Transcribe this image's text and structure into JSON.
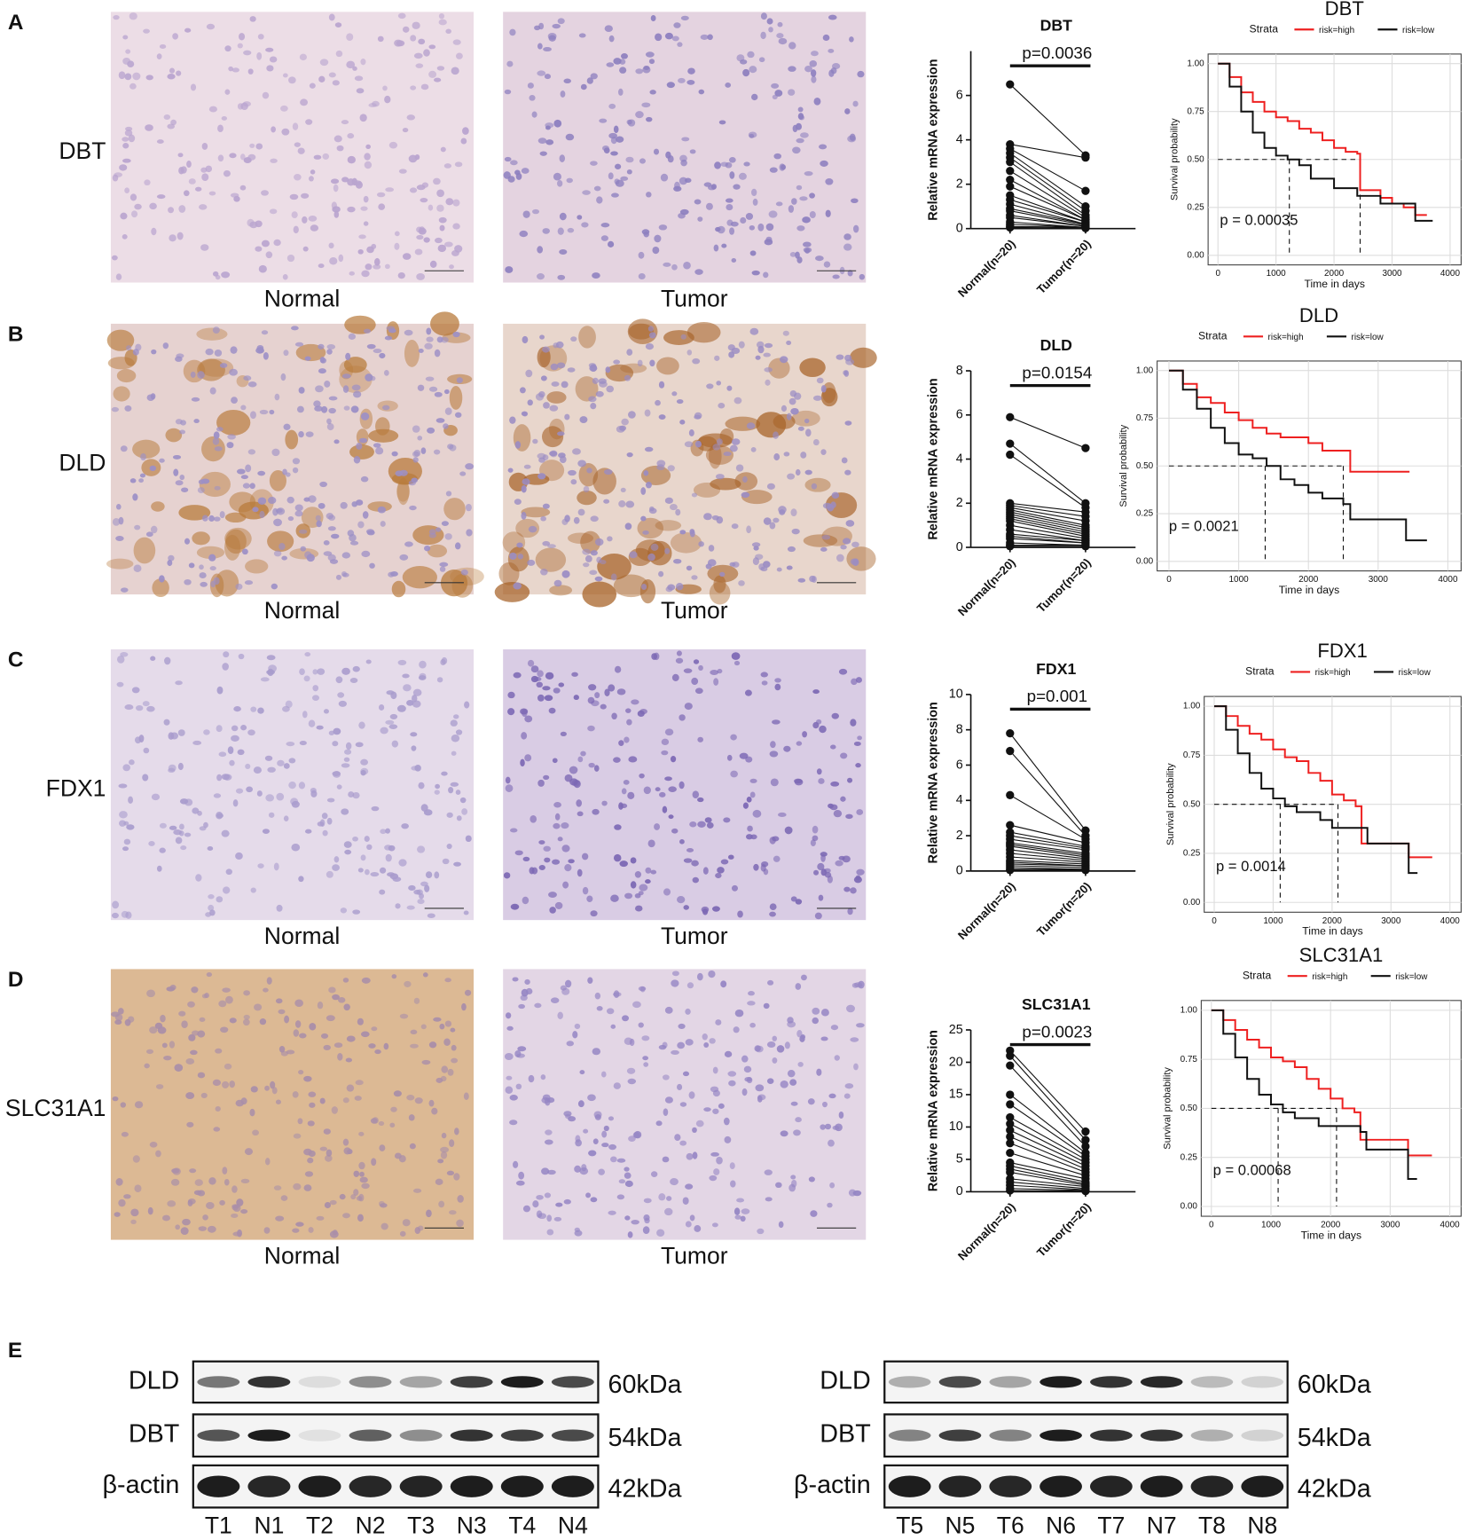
{
  "panels": [
    {
      "label": "A",
      "gene": "DBT",
      "images": [
        "Normal",
        "Tumor"
      ],
      "mrna": {
        "type": "paired",
        "title": "DBT",
        "ylabel": "Relative mRNA  expression",
        "categories": [
          "Normal(n=20)",
          "Tumor(n=20)"
        ],
        "p_text": "p=0.0036",
        "ylim": [
          0,
          8
        ],
        "yticks": [
          0,
          2,
          4,
          6
        ],
        "values": [
          [
            6.5,
            3.8,
            3.6,
            3.4,
            3.2,
            3.0,
            2.6,
            2.2,
            1.9,
            1.5,
            1.3,
            1.1,
            0.9,
            0.8,
            0.6,
            0.5,
            0.3,
            0.2,
            0.1,
            0.05
          ],
          [
            3.3,
            3.2,
            1.7,
            1.0,
            0.8,
            0.6,
            0.5,
            0.4,
            0.4,
            0.3,
            0.3,
            0.2,
            0.2,
            0.15,
            0.1,
            0.1,
            0.05,
            0.05,
            0.05,
            0.02
          ]
        ]
      },
      "survival": {
        "type": "line",
        "title": "DBT",
        "legend_title": "Strata",
        "xlabel": "Time in days",
        "ylabel": "Survival probability",
        "p_text": "p = 0.00035",
        "xlim": [
          -170,
          4190
        ],
        "ylim": [
          -0.05,
          1.05
        ],
        "xticks": [
          0,
          1000,
          2000,
          3000,
          4000
        ],
        "yticks": [
          {
            "value": 0,
            "label": "0.00"
          },
          {
            "value": 0.25,
            "label": "0.25"
          },
          {
            "value": 0.5,
            "label": "0.50"
          },
          {
            "value": 0.75,
            "label": "0.75"
          },
          {
            "value": 1,
            "label": "1.00"
          }
        ],
        "grid": true,
        "median_lines": {
          "y": 0.5,
          "x": [
            2450,
            1230
          ]
        },
        "series": [
          {
            "name": "risk=high",
            "color": "#ee2020",
            "x": [
              0,
              200,
              400,
              600,
              800,
              1000,
              1200,
              1400,
              1600,
              1800,
              2000,
              2200,
              2400,
              2450,
              2800,
              3000,
              3200,
              3400,
              3600
            ],
            "values": [
              1,
              0.93,
              0.85,
              0.8,
              0.75,
              0.72,
              0.7,
              0.66,
              0.64,
              0.6,
              0.56,
              0.54,
              0.53,
              0.34,
              0.3,
              0.27,
              0.25,
              0.21,
              0.21
            ]
          },
          {
            "name": "risk=low",
            "color": "#111111",
            "x": [
              0,
              200,
              400,
              600,
              800,
              1000,
              1200,
              1400,
              1600,
              2000,
              2400,
              2800,
              3200,
              3400,
              3700
            ],
            "values": [
              1,
              0.88,
              0.75,
              0.64,
              0.56,
              0.52,
              0.5,
              0.47,
              0.4,
              0.35,
              0.31,
              0.27,
              0.27,
              0.18,
              0.18
            ]
          }
        ]
      }
    },
    {
      "label": "B",
      "gene": "DLD",
      "images": [
        "Normal",
        "Tumor"
      ],
      "mrna": {
        "type": "paired",
        "title": "DLD",
        "ylabel": "Relative mRNA  expression",
        "categories": [
          "Normal(n=20)",
          "Tumor(n=20)"
        ],
        "p_text": "p=0.0154",
        "ylim": [
          0,
          8
        ],
        "yticks": [
          0,
          2,
          4,
          6,
          8
        ],
        "values": [
          [
            5.9,
            4.7,
            4.2,
            2.0,
            1.9,
            1.8,
            1.7,
            1.6,
            1.5,
            1.4,
            1.3,
            1.2,
            1.0,
            0.8,
            0.6,
            0.5,
            0.4,
            0.2,
            0.1,
            0.05
          ],
          [
            4.5,
            2.0,
            1.8,
            1.6,
            1.4,
            1.2,
            1.0,
            0.9,
            0.8,
            0.7,
            0.6,
            0.5,
            0.4,
            0.3,
            0.3,
            0.2,
            0.2,
            0.1,
            0.1,
            0.05
          ]
        ]
      },
      "survival": {
        "type": "line",
        "title": "DLD",
        "legend_title": "Strata",
        "xlabel": "Time in days",
        "ylabel": "Survival probability",
        "p_text": "p = 0.0021",
        "xlim": [
          -170,
          4190
        ],
        "ylim": [
          -0.05,
          1.05
        ],
        "xticks": [
          0,
          1000,
          2000,
          3000,
          4000
        ],
        "yticks": [
          {
            "value": 0,
            "label": "0.00"
          },
          {
            "value": 0.25,
            "label": "0.25"
          },
          {
            "value": 0.5,
            "label": "0.50"
          },
          {
            "value": 0.75,
            "label": "0.75"
          },
          {
            "value": 1,
            "label": "1.00"
          }
        ],
        "grid": true,
        "median_lines": {
          "y": 0.5,
          "x": [
            2500,
            1380
          ]
        },
        "series": [
          {
            "name": "risk=high",
            "color": "#ee2020",
            "x": [
              0,
              200,
              400,
              600,
              800,
              1000,
              1200,
              1400,
              1600,
              1800,
              2000,
              2200,
              2500,
              2600,
              3000,
              3450
            ],
            "values": [
              1,
              0.93,
              0.86,
              0.83,
              0.78,
              0.74,
              0.7,
              0.67,
              0.65,
              0.65,
              0.62,
              0.58,
              0.58,
              0.47,
              0.47,
              0.47
            ]
          },
          {
            "name": "risk=low",
            "color": "#111111",
            "x": [
              0,
              200,
              400,
              600,
              800,
              1000,
              1200,
              1400,
              1600,
              1800,
              2000,
              2200,
              2500,
              2600,
              3000,
              3400,
              3700
            ],
            "values": [
              1,
              0.9,
              0.8,
              0.7,
              0.62,
              0.56,
              0.54,
              0.5,
              0.43,
              0.4,
              0.36,
              0.33,
              0.3,
              0.22,
              0.22,
              0.11,
              0.11
            ]
          }
        ]
      }
    },
    {
      "label": "C",
      "gene": "FDX1",
      "images": [
        "Normal",
        "Tumor"
      ],
      "mrna": {
        "type": "paired",
        "title": "FDX1",
        "ylabel": "Relative mRNA  expression",
        "categories": [
          "Normal(n=20)",
          "Tumor(n=20)"
        ],
        "p_text": "p=0.001",
        "ylim": [
          0,
          10
        ],
        "yticks": [
          0,
          2,
          4,
          6,
          8,
          10
        ],
        "values": [
          [
            7.8,
            6.8,
            4.3,
            2.6,
            2.2,
            2.0,
            1.8,
            1.6,
            1.5,
            1.4,
            1.2,
            1.0,
            0.8,
            0.6,
            0.5,
            0.4,
            0.3,
            0.2,
            0.1,
            0.05
          ],
          [
            2.3,
            2.0,
            1.8,
            1.6,
            1.4,
            1.3,
            1.2,
            1.0,
            0.9,
            0.8,
            0.7,
            0.6,
            0.5,
            0.4,
            0.3,
            0.3,
            0.2,
            0.1,
            0.1,
            0.05
          ]
        ]
      },
      "survival": {
        "type": "line",
        "title": "FDX1",
        "legend_title": "Strata",
        "xlabel": "Time in days",
        "ylabel": "Survival probability",
        "p_text": "p = 0.0014",
        "xlim": [
          -170,
          4190
        ],
        "ylim": [
          -0.05,
          1.05
        ],
        "xticks": [
          0,
          1000,
          2000,
          3000,
          4000
        ],
        "yticks": [
          {
            "value": 0,
            "label": "0.00"
          },
          {
            "value": 0.25,
            "label": "0.25"
          },
          {
            "value": 0.5,
            "label": "0.50"
          },
          {
            "value": 0.75,
            "label": "0.75"
          },
          {
            "value": 1,
            "label": "1.00"
          }
        ],
        "grid": true,
        "median_lines": {
          "y": 0.5,
          "x": [
            2100,
            1120
          ]
        },
        "series": [
          {
            "name": "risk=high",
            "color": "#ee2020",
            "x": [
              0,
              200,
              400,
              600,
              800,
              1000,
              1200,
              1400,
              1600,
              1800,
              2000,
              2200,
              2400,
              2500,
              2800,
              3200,
              3300,
              3500,
              3700
            ],
            "values": [
              1,
              0.95,
              0.9,
              0.86,
              0.83,
              0.78,
              0.74,
              0.72,
              0.66,
              0.62,
              0.55,
              0.52,
              0.49,
              0.3,
              0.3,
              0.3,
              0.23,
              0.23,
              0.23
            ]
          },
          {
            "name": "risk=low",
            "color": "#111111",
            "x": [
              0,
              200,
              400,
              600,
              800,
              1000,
              1200,
              1400,
              1800,
              2000,
              2500,
              2600,
              3200,
              3300,
              3450
            ],
            "values": [
              1,
              0.88,
              0.76,
              0.66,
              0.58,
              0.53,
              0.49,
              0.46,
              0.42,
              0.38,
              0.38,
              0.3,
              0.3,
              0.15,
              0.15
            ]
          }
        ]
      }
    },
    {
      "label": "D",
      "gene": "SLC31A1",
      "images": [
        "Normal",
        "Tumor"
      ],
      "mrna": {
        "type": "paired",
        "title": "SLC31A1",
        "ylabel": "Relative mRNA  expression",
        "categories": [
          "Normal(n=20)",
          "Tumor(n=20)"
        ],
        "p_text": "p=0.0023",
        "ylim": [
          0,
          25
        ],
        "yticks": [
          0,
          5,
          10,
          15,
          20,
          25
        ],
        "values": [
          [
            21.8,
            21,
            19.5,
            15,
            13.5,
            11.5,
            10.5,
            9.5,
            8.5,
            7.5,
            6,
            4.5,
            4,
            3.5,
            3,
            2,
            1.5,
            1,
            0.5,
            0.2
          ],
          [
            9.3,
            8,
            7,
            6,
            5.5,
            5,
            4.5,
            4,
            3.5,
            3,
            2.5,
            2,
            1.5,
            1.2,
            1,
            0.8,
            0.5,
            0.3,
            0.2,
            0.1
          ]
        ]
      },
      "survival": {
        "type": "line",
        "title": "SLC31A1",
        "legend_title": "Strata",
        "xlabel": "Time in days",
        "ylabel": "Survival probability",
        "p_text": "p = 0.00068",
        "xlim": [
          -170,
          4190
        ],
        "ylim": [
          -0.05,
          1.05
        ],
        "xticks": [
          0,
          1000,
          2000,
          3000,
          4000
        ],
        "yticks": [
          {
            "value": 0,
            "label": "0.00"
          },
          {
            "value": 0.25,
            "label": "0.25"
          },
          {
            "value": 0.5,
            "label": "0.50"
          },
          {
            "value": 0.75,
            "label": "0.75"
          },
          {
            "value": 1,
            "label": "1.00"
          }
        ],
        "grid": true,
        "median_lines": {
          "y": 0.5,
          "x": [
            2100,
            1120
          ]
        },
        "series": [
          {
            "name": "risk=high",
            "color": "#ee2020",
            "x": [
              0,
              200,
              400,
              600,
              800,
              1000,
              1200,
              1400,
              1600,
              1800,
              2000,
              2200,
              2400,
              2500,
              2800,
              3200,
              3300,
              3500,
              3700
            ],
            "values": [
              1,
              0.95,
              0.9,
              0.85,
              0.81,
              0.76,
              0.74,
              0.71,
              0.65,
              0.6,
              0.55,
              0.5,
              0.48,
              0.34,
              0.34,
              0.34,
              0.26,
              0.26,
              0.26
            ]
          },
          {
            "name": "risk=low",
            "color": "#111111",
            "x": [
              0,
              200,
              400,
              600,
              800,
              1000,
              1200,
              1400,
              1800,
              2000,
              2500,
              2600,
              3200,
              3300,
              3450
            ],
            "values": [
              1,
              0.88,
              0.76,
              0.65,
              0.57,
              0.52,
              0.48,
              0.45,
              0.41,
              0.41,
              0.38,
              0.29,
              0.29,
              0.14,
              0.14
            ]
          }
        ]
      }
    }
  ],
  "western": {
    "label": "E",
    "blots": [
      {
        "rows": [
          {
            "protein": "DLD",
            "size": "60kDa"
          },
          {
            "protein": "DBT",
            "size": "54kDa"
          },
          {
            "protein": "β-actin",
            "size": "42kDa"
          }
        ],
        "lanes": [
          "T1",
          "N1",
          "T2",
          "N2",
          "T3",
          "N3",
          "T4",
          "N4"
        ]
      },
      {
        "rows": [
          {
            "protein": "DLD",
            "size": "60kDa"
          },
          {
            "protein": "DBT",
            "size": "54kDa"
          },
          {
            "protein": "β-actin",
            "size": "42kDa"
          }
        ],
        "lanes": [
          "T5",
          "N5",
          "T6",
          "N6",
          "T7",
          "N7",
          "T8",
          "N8"
        ]
      }
    ]
  }
}
